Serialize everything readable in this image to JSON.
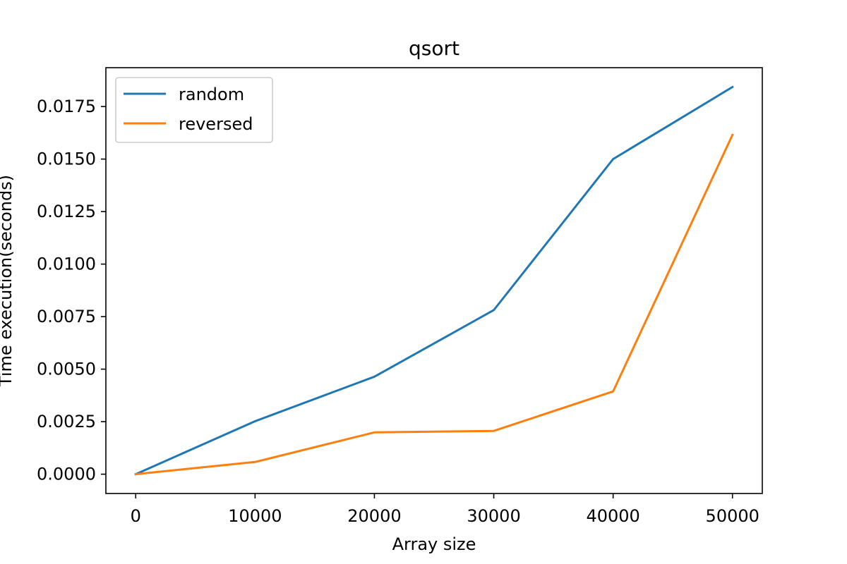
{
  "chart_data": {
    "type": "line",
    "title": "qsort",
    "xlabel": "Array size",
    "ylabel": "Time execution(seconds)",
    "x": [
      0,
      10000,
      20000,
      30000,
      40000,
      50000
    ],
    "xlim": [
      -2500,
      52500
    ],
    "ylim": [
      -0.00092,
      0.01935
    ],
    "xticks": [
      "0",
      "10000",
      "20000",
      "30000",
      "40000",
      "50000"
    ],
    "yticks": [
      "0.0000",
      "0.0025",
      "0.0050",
      "0.0075",
      "0.0100",
      "0.0125",
      "0.0150",
      "0.0175"
    ],
    "grid": false,
    "legend_position": "upper-left",
    "series": [
      {
        "name": "random",
        "color": "#1f77b4",
        "values": [
          0.0,
          0.00252,
          0.00464,
          0.00781,
          0.015,
          0.01843
        ]
      },
      {
        "name": "reversed",
        "color": "#ff7f0e",
        "values": [
          0.0,
          0.00058,
          0.00199,
          0.00206,
          0.00394,
          0.01615
        ]
      }
    ]
  }
}
